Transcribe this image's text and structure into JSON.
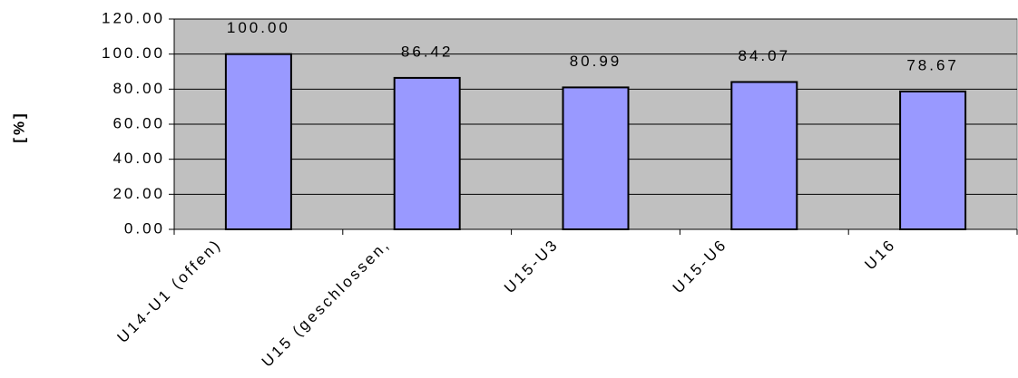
{
  "chart_data": {
    "type": "bar",
    "y_label": "[%]",
    "categories": [
      "U14-U1 (offen)",
      "U15 (geschlossen,",
      "U15-U3",
      "U15-U6",
      "U16"
    ],
    "values": [
      100,
      86.42,
      80.99,
      84.07,
      78.67
    ],
    "value_labels": [
      "100.00",
      "86.42",
      "80.99",
      "84.07",
      "78.67"
    ],
    "color": "#9999ff",
    "ylim": [
      0,
      120
    ],
    "yticks": [
      {
        "value": 0,
        "label": "0.00"
      },
      {
        "value": 20,
        "label": "20.00"
      },
      {
        "value": 40,
        "label": "40.00"
      },
      {
        "value": 60,
        "label": "60.00"
      },
      {
        "value": 80,
        "label": "80.00"
      },
      {
        "value": 100,
        "label": "100.00"
      },
      {
        "value": 120,
        "label": "120.00"
      }
    ],
    "grid": true
  }
}
